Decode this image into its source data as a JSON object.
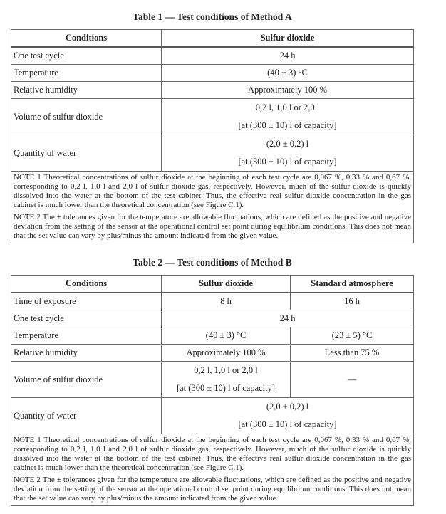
{
  "table1": {
    "title": "Table 1 — Test conditions of Method A",
    "headers": [
      "Conditions",
      "Sulfur dioxide"
    ],
    "rows": [
      [
        "One test cycle",
        "24 h"
      ],
      [
        "Temperature",
        "(40 ± 3) °C"
      ],
      [
        "Relative humidity",
        "Approximately 100 %"
      ]
    ],
    "volume": {
      "label": "Volume of sulfur dioxide",
      "line1": "0,2 l, 1,0 l or 2,0 l",
      "line2": "[at (300 ± 10) l of capacity]"
    },
    "water": {
      "label": "Quantity of water",
      "line1": "(2,0 ± 0,2) l",
      "line2": "[at (300 ± 10) l of capacity]"
    },
    "notes": [
      "NOTE 1   Theoretical concentrations of sulfur dioxide at the beginning of each test cycle are 0,067 %, 0,33 % and 0,67 %, corresponding to 0,2 l, 1,0 l and 2,0 l of sulfur dioxide gas, respectively. However, much of the sulfur dioxide is quickly dissolved into the water at the bottom of the test cabinet. Thus, the effective real sulfur dioxide concentration in the gas cabinet is much lower than the theoretical concentration (see Figure C.1).",
      "NOTE 2   The ± tolerances given for the temperature are allowable fluctuations, which are defined as the positive and negative deviation from the setting of the sensor at the operational control set point during equilibrium conditions. This does not mean that the set value can vary by plus/minus the amount indicated from the given value."
    ]
  },
  "table2": {
    "title": "Table 2 — Test conditions of Method B",
    "headers": [
      "Conditions",
      "Sulfur dioxide",
      "Standard atmosphere"
    ],
    "exposure": [
      "Time of exposure",
      "8 h",
      "16 h"
    ],
    "cycle": [
      "One test cycle",
      "24 h"
    ],
    "temperature": [
      "Temperature",
      "(40 ± 3) °C",
      "(23 ± 5) °C"
    ],
    "humidity": [
      "Relative humidity",
      "Approximately 100 %",
      "Less than 75 %"
    ],
    "volume": {
      "label": "Volume of sulfur dioxide",
      "line1": "0,2 l, 1,0 l or 2,0 l",
      "line2": "[at (300 ± 10) l of capacity]",
      "standard": "—"
    },
    "water": {
      "label": "Quantity of water",
      "line1": "(2,0 ± 0,2) l",
      "line2": "[at (300 ± 10) l of capacity]"
    },
    "notes": [
      "NOTE 1   Theoretical concentrations of sulfur dioxide at the beginning of each test cycle are 0,067 %, 0,33 % and 0,67 %, corresponding to 0,2 l, 1,0 l and 2,0 l of sulfur dioxide gas, respectively. However, much of the sulfur dioxide is quickly dissolved into the water at the bottom of the test cabinet. Thus, the effective real sulfur dioxide concentration in the gas cabinet is much lower than the theoretical concentration (see Figure C.1).",
      "NOTE 2   The ± tolerances given for the temperature are allowable fluctuations, which are defined as the positive and negative deviation from the setting of the sensor at the operational control set point during equilibrium conditions. This does not mean that the set value can vary by plus/minus the amount indicated from the given value."
    ]
  }
}
